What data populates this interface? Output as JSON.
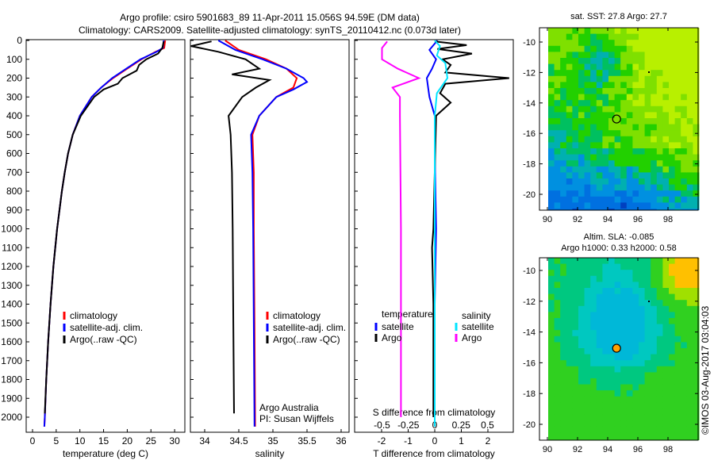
{
  "title": {
    "line1": "Argo profile: csiro 5901683_89 11-Apr-2011 15.056S 94.59E (DM data)",
    "line2": "Climatology: CARS2009. Satellite-adjusted climatology: synTS_20110412.nc (0.073d later)"
  },
  "copyright": "©IMOS 03-Aug-2017 03:04:03",
  "colors": {
    "climatology": "#ff0000",
    "satellite": "#0000ff",
    "argo": "#000000",
    "sat_salinity": "#00e5ff",
    "argo_salinity": "#ff00ff"
  },
  "chart_data": [
    {
      "type": "line",
      "title": "",
      "xlabel": "temperature (deg C)",
      "ylabel": "",
      "xlim": [
        -1.4,
        32
      ],
      "ylim": [
        2080,
        0
      ],
      "xticks": [
        "0",
        "5",
        "10",
        "15",
        "20",
        "25",
        "30"
      ],
      "yticks": [
        "0",
        "100",
        "200",
        "300",
        "400",
        "500",
        "600",
        "700",
        "800",
        "900",
        "1000",
        "1100",
        "1200",
        "1300",
        "1400",
        "1500",
        "1600",
        "1700",
        "1800",
        "1900",
        "2000"
      ],
      "legend": [
        "climatology",
        "satellite-adj. clim.",
        "Argo(..raw -QC)"
      ],
      "series": [
        {
          "name": "climatology",
          "points": [
            [
              0,
              28
            ],
            [
              40,
              27.8
            ],
            [
              60,
              26
            ],
            [
              80,
              24.5
            ],
            [
              100,
              23
            ],
            [
              150,
              20
            ],
            [
              200,
              17
            ],
            [
              250,
              14.5
            ],
            [
              300,
              12.5
            ],
            [
              400,
              10
            ],
            [
              500,
              8.5
            ],
            [
              600,
              7.5
            ],
            [
              700,
              6.8
            ],
            [
              800,
              6.2
            ],
            [
              1000,
              5.2
            ],
            [
              1200,
              4.4
            ],
            [
              1400,
              3.8
            ],
            [
              1600,
              3.3
            ],
            [
              1800,
              2.9
            ],
            [
              2000,
              2.6
            ],
            [
              2050,
              2.5
            ]
          ]
        },
        {
          "name": "satellite-adj. clim.",
          "points": [
            [
              0,
              27.7
            ],
            [
              40,
              27.5
            ],
            [
              60,
              26.2
            ],
            [
              80,
              24.5
            ],
            [
              100,
              22.8
            ],
            [
              150,
              19.8
            ],
            [
              200,
              16.8
            ],
            [
              250,
              14.5
            ],
            [
              300,
              12.5
            ],
            [
              400,
              10
            ],
            [
              500,
              8.5
            ],
            [
              600,
              7.5
            ],
            [
              700,
              6.8
            ],
            [
              800,
              6.2
            ],
            [
              1000,
              5.2
            ],
            [
              1200,
              4.4
            ],
            [
              1400,
              3.8
            ],
            [
              1600,
              3.3
            ],
            [
              1800,
              2.9
            ],
            [
              2000,
              2.6
            ],
            [
              2050,
              2.5
            ]
          ]
        },
        {
          "name": "Argo(..raw -QC)",
          "points": [
            [
              5,
              27.7
            ],
            [
              40,
              27.4
            ],
            [
              70,
              26.5
            ],
            [
              100,
              24
            ],
            [
              130,
              22.5
            ],
            [
              160,
              22
            ],
            [
              200,
              19
            ],
            [
              230,
              18
            ],
            [
              260,
              15
            ],
            [
              300,
              13
            ],
            [
              400,
              10.2
            ],
            [
              500,
              8.5
            ],
            [
              600,
              7.5
            ],
            [
              700,
              6.8
            ],
            [
              800,
              6.2
            ],
            [
              1000,
              5.2
            ],
            [
              1200,
              4.4
            ],
            [
              1400,
              3.8
            ],
            [
              1600,
              3.3
            ],
            [
              1800,
              2.9
            ],
            [
              1980,
              2.6
            ]
          ]
        }
      ]
    },
    {
      "type": "line",
      "xlabel": "salinity",
      "xlim": [
        33.79,
        36.12
      ],
      "ylim": [
        2080,
        0
      ],
      "xticks": [
        "34",
        "34.5",
        "35",
        "35.5",
        "36"
      ],
      "legend": [
        "climatology",
        "satellite-adj. clim.",
        "Argo(..raw -QC)"
      ],
      "annotation": [
        "Argo Australia",
        "PI: Susan Wijffels"
      ],
      "series": [
        {
          "name": "climatology",
          "points": [
            [
              0,
              34.3
            ],
            [
              50,
              34.5
            ],
            [
              100,
              34.9
            ],
            [
              150,
              35.2
            ],
            [
              200,
              35.35
            ],
            [
              250,
              35.3
            ],
            [
              300,
              35.05
            ],
            [
              400,
              34.8
            ],
            [
              500,
              34.7
            ],
            [
              700,
              34.72
            ],
            [
              1000,
              34.72
            ],
            [
              1500,
              34.73
            ],
            [
              2050,
              34.74
            ]
          ]
        },
        {
          "name": "satellite-adj. clim.",
          "points": [
            [
              0,
              34.2
            ],
            [
              50,
              34.45
            ],
            [
              100,
              34.85
            ],
            [
              150,
              35.2
            ],
            [
              200,
              35.45
            ],
            [
              220,
              35.5
            ],
            [
              260,
              35.3
            ],
            [
              300,
              35.05
            ],
            [
              400,
              34.8
            ],
            [
              500,
              34.68
            ],
            [
              700,
              34.7
            ],
            [
              1000,
              34.71
            ],
            [
              1500,
              34.72
            ],
            [
              2050,
              34.73
            ]
          ]
        },
        {
          "name": "Argo(..raw -QC)",
          "points": [
            [
              5,
              34.1
            ],
            [
              30,
              33.8
            ],
            [
              60,
              34.2
            ],
            [
              100,
              34.6
            ],
            [
              150,
              34.8
            ],
            [
              180,
              34.4
            ],
            [
              210,
              34.95
            ],
            [
              250,
              34.75
            ],
            [
              300,
              34.55
            ],
            [
              400,
              34.35
            ],
            [
              500,
              34.38
            ],
            [
              700,
              34.4
            ],
            [
              1000,
              34.41
            ],
            [
              1500,
              34.42
            ],
            [
              1980,
              34.43
            ]
          ]
        }
      ]
    },
    {
      "type": "line",
      "xlabel": "T difference from climatology",
      "x2label": "S difference from climatology",
      "xlim": [
        -3.0,
        2.9
      ],
      "ylim": [
        2080,
        0
      ],
      "xticks": [
        "-2",
        "-1",
        "0",
        "1",
        "2"
      ],
      "x2ticks": [
        "-0.5",
        "-0.25",
        "0",
        "0.25",
        "0.5"
      ],
      "legend": {
        "temperature": "temperature",
        "salinity": "salinity",
        "items": [
          "satellite",
          "Argo",
          "satellite",
          "Argo"
        ]
      },
      "series": [
        {
          "name": "T satellite",
          "axis": "T",
          "points": [
            [
              0,
              0.1
            ],
            [
              50,
              -0.2
            ],
            [
              100,
              0.05
            ],
            [
              150,
              -0.1
            ],
            [
              200,
              -0.3
            ],
            [
              300,
              -0.2
            ],
            [
              400,
              0
            ],
            [
              600,
              0
            ],
            [
              1000,
              0.05
            ],
            [
              1400,
              0
            ],
            [
              2050,
              0
            ]
          ]
        },
        {
          "name": "T Argo",
          "axis": "T",
          "points": [
            [
              5,
              0
            ],
            [
              25,
              1.2
            ],
            [
              45,
              0.1
            ],
            [
              70,
              1.4
            ],
            [
              100,
              0.3
            ],
            [
              130,
              0.6
            ],
            [
              170,
              0.4
            ],
            [
              200,
              2.8
            ],
            [
              230,
              0.4
            ],
            [
              280,
              0.2
            ],
            [
              330,
              0.6
            ],
            [
              400,
              0.05
            ],
            [
              700,
              0
            ],
            [
              1000,
              -0.05
            ],
            [
              1100,
              -0.1
            ],
            [
              1400,
              -0.05
            ],
            [
              2000,
              -0.05
            ]
          ]
        },
        {
          "name": "S satellite",
          "axis": "S",
          "points": [
            [
              0,
              0
            ],
            [
              30,
              0.05
            ],
            [
              80,
              0.02
            ],
            [
              120,
              0.1
            ],
            [
              200,
              0.12
            ],
            [
              280,
              0.02
            ],
            [
              400,
              0
            ],
            [
              1000,
              0
            ],
            [
              2050,
              0
            ]
          ]
        },
        {
          "name": "S Argo",
          "axis": "S",
          "points": [
            [
              5,
              -0.45
            ],
            [
              40,
              -0.5
            ],
            [
              100,
              -0.5
            ],
            [
              150,
              -0.35
            ],
            [
              200,
              -0.15
            ],
            [
              250,
              -0.4
            ],
            [
              300,
              -0.33
            ],
            [
              400,
              -0.33
            ],
            [
              1000,
              -0.32
            ],
            [
              2000,
              -0.32
            ]
          ]
        }
      ]
    },
    {
      "type": "heatmap",
      "title": "sat. SST: 27.8 Argo: 27.7",
      "xticks": [
        "90",
        "92",
        "94",
        "96",
        "98"
      ],
      "yticks": [
        "-10",
        "-12",
        "-14",
        "-16",
        "-18",
        "-20"
      ],
      "marker": {
        "lon": 94.59,
        "lat": -15.056
      }
    },
    {
      "type": "heatmap",
      "title": "Altim. SLA: -0.085",
      "subtitle": "Argo h1000: 0.33 h2000: 0.58",
      "xticks": [
        "90",
        "92",
        "94",
        "96",
        "98"
      ],
      "yticks": [
        "-10",
        "-12",
        "-14",
        "-16",
        "-18",
        "-20"
      ],
      "marker": {
        "lon": 94.59,
        "lat": -15.056
      }
    }
  ]
}
